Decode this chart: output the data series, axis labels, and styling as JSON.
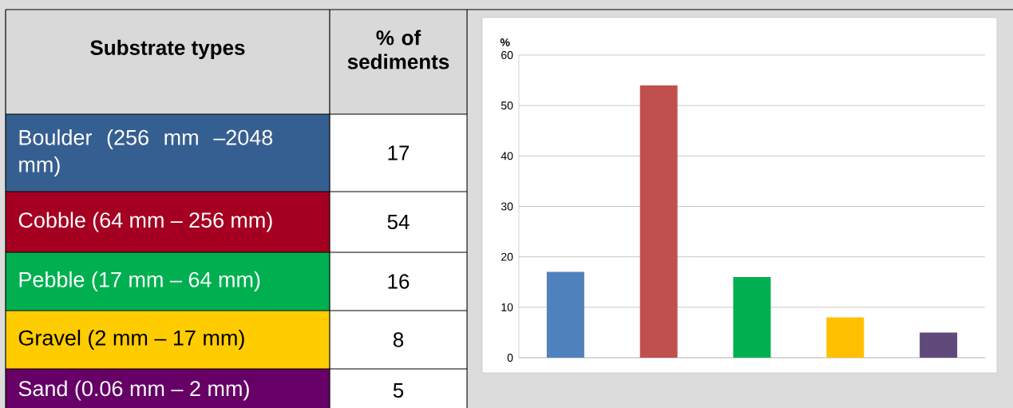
{
  "chart_data": [
    {
      "type": "other",
      "annotations": [
        "Substrate types",
        "% of sediments"
      ],
      "categories": [
        "Boulder (256 mm –2048 mm)",
        "Cobble (64 mm – 256 mm)",
        "Pebble (17 mm – 64 mm)",
        "Gravel (2 mm – 17 mm)",
        "Sand (0.06 mm – 2 mm)"
      ],
      "values": [
        17,
        54,
        16,
        8,
        5
      ],
      "value_labels": [
        "17",
        "54",
        "16",
        "8",
        "5"
      ],
      "colors": [
        "#365f91",
        "#a50021",
        "#00b050",
        "#ffcc00",
        "#660066"
      ]
    },
    {
      "type": "bar",
      "categories": [
        null,
        null,
        null,
        null,
        null
      ],
      "values": [
        17,
        54,
        16,
        8,
        5
      ],
      "colors": [
        "#4f81bd",
        "#c0504d",
        "#00b050",
        "#ffc000",
        "#604a7b"
      ],
      "ylabel": "%",
      "ylim": [
        0,
        60
      ],
      "yticks": [
        0,
        10,
        20,
        30,
        40,
        50,
        60
      ],
      "grid": true,
      "tick_labels": "y"
    }
  ]
}
